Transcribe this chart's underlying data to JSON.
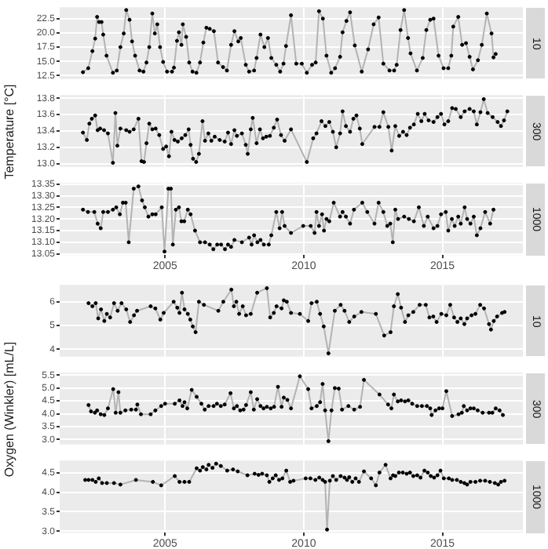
{
  "chart_data": [
    {
      "type": "line",
      "annotations": [
        "10"
      ],
      "xlim": [
        2001.2,
        2017.9
      ],
      "xticks": [
        2005,
        2010,
        2015
      ],
      "ylim": [
        11.9,
        24.5
      ],
      "yticks": [
        {
          "value": 12.5,
          "label": "12.5"
        },
        {
          "value": 15,
          "label": "15.0"
        },
        {
          "value": 17.5,
          "label": "17.5"
        },
        {
          "value": 20,
          "label": "20.0"
        },
        {
          "value": 22.5,
          "label": "22.5"
        }
      ],
      "grid": true,
      "marker": "circle",
      "tick_labels": "y",
      "series": [
        {
          "color": "#b3b3b3",
          "x": [
            2002.04,
            2002.23,
            2002.38,
            2002.48,
            2002.55,
            2002.62,
            2002.71,
            2002.77,
            2002.89,
            2003.12,
            2003.26,
            2003.39,
            2003.51,
            2003.6,
            2003.72,
            2003.81,
            2003.92,
            2004.08,
            2004.22,
            2004.33,
            2004.43,
            2004.54,
            2004.63,
            2004.72,
            2004.82,
            2004.93,
            2005.07,
            2005.25,
            2005.32,
            2005.43,
            2005.5,
            2005.59,
            2005.64,
            2005.76,
            2005.87,
            2005.99,
            2006.13,
            2006.26,
            2006.38,
            2006.49,
            2006.61,
            2006.76,
            2006.91,
            2007.09,
            2007.23,
            2007.38,
            2007.5,
            2007.64,
            2007.73,
            2007.91,
            2008.03,
            2008.21,
            2008.3,
            2008.44,
            2008.58,
            2008.71,
            2008.83,
            2009.01,
            2009.15,
            2009.27,
            2009.36,
            2009.54,
            2009.73,
            2009.93,
            2010.11,
            2010.3,
            2010.43,
            2010.55,
            2010.69,
            2010.82,
            2010.99,
            2011.13,
            2011.31,
            2011.4,
            2011.54,
            2011.67,
            2011.84,
            2012.09,
            2012.32,
            2012.52,
            2012.7,
            2012.87,
            2013.09,
            2013.26,
            2013.35,
            2013.49,
            2013.62,
            2013.76,
            2013.85,
            2014.08,
            2014.29,
            2014.42,
            2014.56,
            2014.68,
            2014.86,
            2015.04,
            2015.21,
            2015.32,
            2015.39,
            2015.57,
            2015.71,
            2015.85,
            2015.98,
            2016.1,
            2016.28,
            2016.42,
            2016.6,
            2016.77,
            2016.84,
            2016.92
          ],
          "values": [
            13.1,
            13.8,
            16.8,
            19.0,
            22.8,
            21.9,
            21.9,
            19.7,
            16.0,
            13.0,
            13.4,
            17.5,
            19.9,
            24.0,
            22.3,
            18.5,
            16.0,
            13.4,
            13.2,
            14.8,
            17.5,
            23.4,
            19.9,
            21.5,
            17.5,
            14.9,
            13.2,
            13.2,
            13.9,
            18.6,
            20.1,
            17.9,
            21.5,
            19.3,
            14.8,
            13.2,
            13.0,
            14.8,
            18.3,
            20.9,
            20.7,
            20.3,
            14.8,
            14.0,
            13.4,
            17.9,
            20.3,
            18.5,
            19.1,
            14.4,
            13.2,
            13.4,
            15.6,
            19.7,
            17.5,
            19.1,
            15.6,
            14.4,
            13.2,
            14.6,
            17.7,
            23.1,
            14.6,
            14.6,
            13.0,
            14.4,
            14.8,
            23.8,
            22.5,
            16.0,
            13.0,
            13.8,
            15.8,
            20.1,
            22.1,
            23.6,
            17.8,
            13.2,
            17.1,
            21.5,
            22.7,
            14.6,
            13.4,
            13.4,
            14.4,
            20.5,
            24.0,
            19.1,
            16.4,
            13.4,
            15.6,
            20.5,
            22.3,
            22.5,
            16.0,
            13.8,
            13.8,
            16.0,
            21.1,
            22.8,
            17.9,
            18.2,
            15.8,
            13.6,
            15.2,
            17.9,
            23.4,
            19.9,
            15.7,
            16.3
          ]
        }
      ]
    },
    {
      "type": "line",
      "annotations": [
        "300"
      ],
      "ylabel": "Temperature [°C]",
      "xlim": [
        2001.2,
        2017.9
      ],
      "xticks": [
        2005,
        2010,
        2015
      ],
      "ylim": [
        12.96,
        13.84
      ],
      "yticks": [
        {
          "value": 13,
          "label": "13.0"
        },
        {
          "value": 13.2,
          "label": "13.2"
        },
        {
          "value": 13.4,
          "label": "13.4"
        },
        {
          "value": 13.6,
          "label": "13.6"
        },
        {
          "value": 13.8,
          "label": "13.8"
        }
      ],
      "grid": true,
      "marker": "circle",
      "tick_labels": "y",
      "series": [
        {
          "color": "#b3b3b3",
          "x": [
            2002.04,
            2002.18,
            2002.27,
            2002.36,
            2002.48,
            2002.57,
            2002.66,
            2002.8,
            2002.94,
            2003.12,
            2003.21,
            2003.28,
            2003.39,
            2003.6,
            2003.72,
            2003.87,
            2004.04,
            2004.15,
            2004.24,
            2004.33,
            2004.43,
            2004.54,
            2004.66,
            2004.79,
            2004.93,
            2005.04,
            2005.14,
            2005.23,
            2005.34,
            2005.46,
            2005.6,
            2005.73,
            2005.85,
            2005.92,
            2006.01,
            2006.12,
            2006.22,
            2006.35,
            2006.44,
            2006.56,
            2006.67,
            2006.79,
            2006.97,
            2007.15,
            2007.27,
            2007.38,
            2007.5,
            2007.59,
            2007.77,
            2007.91,
            2007.98,
            2008.09,
            2008.16,
            2008.3,
            2008.42,
            2008.53,
            2008.65,
            2008.78,
            2008.92,
            2009.04,
            2009.18,
            2009.31,
            2009.54,
            2010.11,
            2010.34,
            2010.46,
            2010.64,
            2010.78,
            2010.92,
            2011.05,
            2011.17,
            2011.31,
            2011.4,
            2011.52,
            2011.67,
            2011.79,
            2011.9,
            2012.02,
            2012.11,
            2012.55,
            2012.73,
            2012.87,
            2013.05,
            2013.17,
            2013.3,
            2013.44,
            2013.58,
            2013.71,
            2013.83,
            2013.97,
            2014.11,
            2014.24,
            2014.36,
            2014.5,
            2014.68,
            2014.82,
            2014.95,
            2015.07,
            2015.21,
            2015.35,
            2015.48,
            2015.66,
            2015.8,
            2015.98,
            2016.13,
            2016.24,
            2016.37,
            2016.49,
            2016.63,
            2016.81,
            2016.99,
            2017.11,
            2017.22,
            2017.34
          ],
          "values": [
            13.38,
            13.29,
            13.49,
            13.55,
            13.59,
            13.41,
            13.43,
            13.41,
            13.37,
            13.01,
            13.62,
            13.22,
            13.43,
            13.41,
            13.39,
            13.42,
            13.55,
            13.03,
            13.02,
            13.25,
            13.49,
            13.42,
            13.43,
            13.35,
            13.18,
            13.21,
            13.09,
            13.39,
            13.29,
            13.27,
            13.31,
            13.35,
            13.42,
            13.23,
            13.06,
            13.02,
            13.12,
            13.52,
            13.28,
            13.37,
            13.28,
            13.33,
            13.29,
            13.27,
            13.38,
            13.24,
            13.41,
            13.34,
            13.37,
            13.23,
            13.12,
            13.42,
            13.56,
            13.25,
            13.42,
            13.31,
            13.33,
            13.34,
            13.44,
            13.54,
            13.35,
            13.28,
            13.42,
            13.02,
            13.31,
            13.37,
            13.52,
            13.46,
            13.51,
            13.39,
            13.2,
            13.37,
            13.64,
            13.46,
            13.39,
            13.55,
            13.59,
            13.43,
            13.24,
            13.45,
            13.45,
            13.63,
            13.45,
            13.16,
            13.46,
            13.34,
            13.39,
            13.35,
            13.44,
            13.48,
            13.61,
            13.52,
            13.61,
            13.53,
            13.51,
            13.57,
            13.61,
            13.48,
            13.52,
            13.68,
            13.67,
            13.57,
            13.64,
            13.67,
            13.64,
            13.48,
            13.63,
            13.79,
            13.62,
            13.57,
            13.51,
            13.46,
            13.53,
            13.64
          ]
        }
      ]
    },
    {
      "type": "line",
      "annotations": [
        "1000"
      ],
      "xlim": [
        2001.2,
        2017.9
      ],
      "xticks": [
        2005,
        2010,
        2015
      ],
      "ylim": [
        13.045,
        13.355
      ],
      "yticks": [
        {
          "value": 13.05,
          "label": "13.05"
        },
        {
          "value": 13.1,
          "label": "13.10"
        },
        {
          "value": 13.15,
          "label": "13.15"
        },
        {
          "value": 13.2,
          "label": "13.20"
        },
        {
          "value": 13.25,
          "label": "13.25"
        },
        {
          "value": 13.3,
          "label": "13.30"
        },
        {
          "value": 13.35,
          "label": "13.35"
        }
      ],
      "grid": true,
      "marker": "circle",
      "series": [
        {
          "color": "#b3b3b3",
          "x": [
            2002.04,
            2002.22,
            2002.45,
            2002.57,
            2002.68,
            2002.77,
            2002.94,
            2003.12,
            2003.24,
            2003.37,
            2003.48,
            2003.58,
            2003.69,
            2003.87,
            2004.04,
            2004.17,
            2004.27,
            2004.4,
            2004.54,
            2004.66,
            2004.88,
            2004.98,
            2005.12,
            2005.21,
            2005.28,
            2005.39,
            2005.5,
            2005.59,
            2005.69,
            2005.82,
            2005.92,
            2006.08,
            2006.26,
            2006.44,
            2006.61,
            2006.74,
            2006.88,
            2007.02,
            2007.16,
            2007.27,
            2007.38,
            2007.5,
            2007.77,
            2008.03,
            2008.12,
            2008.21,
            2008.33,
            2008.44,
            2008.56,
            2008.74,
            2008.83,
            2009.01,
            2009.13,
            2009.22,
            2009.31,
            2009.54,
            2009.98,
            2010.25,
            2010.39,
            2010.46,
            2010.55,
            2010.66,
            2010.73,
            2010.82,
            2010.92,
            2011.08,
            2011.31,
            2011.4,
            2011.52,
            2011.67,
            2011.81,
            2012.11,
            2012.29,
            2012.55,
            2012.7,
            2012.87,
            2013.01,
            2013.12,
            2013.21,
            2013.3,
            2013.4,
            2013.62,
            2013.79,
            2013.97,
            2014.15,
            2014.33,
            2014.47,
            2014.68,
            2014.82,
            2014.95,
            2015.12,
            2015.21,
            2015.34,
            2015.44,
            2015.57,
            2015.66,
            2015.8,
            2015.89,
            2016.01,
            2016.13,
            2016.24,
            2016.37,
            2016.54,
            2016.72,
            2016.84
          ],
          "values": [
            13.24,
            13.23,
            13.23,
            13.18,
            13.16,
            13.23,
            13.23,
            13.24,
            13.25,
            13.22,
            13.27,
            13.27,
            13.1,
            13.33,
            13.34,
            13.28,
            13.25,
            13.21,
            13.22,
            13.22,
            13.25,
            13.06,
            13.33,
            13.33,
            13.09,
            13.24,
            13.25,
            13.19,
            13.19,
            13.24,
            13.22,
            13.15,
            13.1,
            13.1,
            13.09,
            13.07,
            13.09,
            13.09,
            13.07,
            13.09,
            13.08,
            13.11,
            13.1,
            13.12,
            13.09,
            13.13,
            13.1,
            13.11,
            13.09,
            13.09,
            13.13,
            13.23,
            13.16,
            13.23,
            13.17,
            13.14,
            13.17,
            13.17,
            13.14,
            13.23,
            13.17,
            13.22,
            13.15,
            13.2,
            13.19,
            13.27,
            13.21,
            13.23,
            13.21,
            13.18,
            13.24,
            13.27,
            13.23,
            13.18,
            13.27,
            13.23,
            13.17,
            13.18,
            13.1,
            13.24,
            13.2,
            13.21,
            13.2,
            13.19,
            13.25,
            13.17,
            13.21,
            13.16,
            13.17,
            13.22,
            13.23,
            13.15,
            13.2,
            13.17,
            13.21,
            13.18,
            13.25,
            13.2,
            13.18,
            13.21,
            13.13,
            13.16,
            13.23,
            13.18,
            13.24
          ]
        }
      ]
    },
    {
      "type": "line",
      "annotations": [
        "10"
      ],
      "xlim": [
        2001.2,
        2017.9
      ],
      "xticks": [
        2005,
        2010,
        2015
      ],
      "ylim": [
        3.69,
        6.71
      ],
      "yticks": [
        4,
        5,
        6
      ],
      "grid": true,
      "marker": "circle",
      "tick_labels": "y",
      "series": [
        {
          "color": "#b3b3b3",
          "x": [
            2002.24,
            2002.38,
            2002.5,
            2002.59,
            2002.69,
            2002.81,
            2002.9,
            2003.02,
            2003.16,
            2003.29,
            2003.43,
            2003.6,
            2003.74,
            2003.88,
            2003.99,
            2004.48,
            2004.65,
            2004.83,
            2004.95,
            2005.31,
            2005.44,
            2005.52,
            2005.61,
            2005.7,
            2005.82,
            2005.91,
            2006.0,
            2006.1,
            2006.22,
            2006.4,
            2006.92,
            2007.1,
            2007.39,
            2007.48,
            2007.57,
            2007.67,
            2007.8,
            2007.92,
            2008.09,
            2008.32,
            2008.67,
            2008.79,
            2008.92,
            2009.02,
            2009.2,
            2009.28,
            2009.39,
            2009.54,
            2009.86,
            2010.16,
            2010.28,
            2010.47,
            2010.59,
            2010.72,
            2010.89,
            2011.12,
            2011.33,
            2011.47,
            2011.64,
            2011.82,
            2012.08,
            2012.6,
            2012.9,
            2013.13,
            2013.25,
            2013.39,
            2013.51,
            2013.65,
            2013.77,
            2013.95,
            2014.18,
            2014.4,
            2014.53,
            2014.67,
            2014.79,
            2014.96,
            2015.14,
            2015.28,
            2015.42,
            2015.54,
            2015.66,
            2015.79,
            2015.89,
            2016.05,
            2016.19,
            2016.36,
            2016.5,
            2016.68,
            2016.75,
            2016.85,
            2016.97,
            2017.15,
            2017.24
          ],
          "values": [
            5.94,
            5.81,
            5.94,
            5.3,
            5.68,
            5.19,
            5.49,
            5.34,
            5.94,
            5.62,
            5.94,
            5.68,
            5.15,
            5.43,
            5.62,
            5.81,
            5.72,
            5.25,
            5.53,
            6.0,
            5.75,
            5.53,
            6.38,
            5.68,
            5.49,
            5.25,
            4.96,
            4.72,
            6.0,
            5.87,
            5.62,
            6.0,
            6.51,
            5.81,
            6.0,
            5.49,
            5.81,
            5.43,
            5.49,
            6.38,
            6.57,
            5.34,
            5.53,
            5.81,
            5.72,
            6.06,
            6.0,
            5.53,
            5.49,
            5.19,
            5.94,
            6.0,
            5.49,
            4.96,
            3.83,
            5.62,
            5.87,
            5.62,
            5.15,
            5.38,
            5.57,
            5.49,
            4.58,
            4.72,
            5.81,
            6.32,
            5.75,
            5.15,
            5.43,
            5.57,
            5.87,
            5.87,
            5.34,
            5.38,
            5.15,
            5.49,
            5.43,
            5.87,
            5.34,
            5.15,
            5.3,
            5.06,
            5.3,
            5.43,
            5.49,
            5.87,
            5.72,
            5.06,
            4.83,
            5.19,
            5.38,
            5.53,
            5.57
          ]
        }
      ]
    },
    {
      "type": "line",
      "annotations": [
        "300"
      ],
      "ylabel": "Oxygen (Winkler) [mL/L]",
      "xlim": [
        2001.2,
        2017.9
      ],
      "xticks": [
        2005,
        2010,
        2015
      ],
      "ylim": [
        2.8,
        5.6
      ],
      "yticks": [
        {
          "value": 3,
          "label": "3.0"
        },
        {
          "value": 3.5,
          "label": "3.5"
        },
        {
          "value": 4,
          "label": "4.0"
        },
        {
          "value": 4.5,
          "label": "4.5"
        },
        {
          "value": 5,
          "label": "5.0"
        },
        {
          "value": 5.5,
          "label": "5.5"
        }
      ],
      "grid": true,
      "marker": "circle",
      "tick_labels": "y",
      "series": [
        {
          "color": "#b3b3b3",
          "x": [
            2002.24,
            2002.33,
            2002.47,
            2002.55,
            2002.68,
            2002.81,
            2002.94,
            2003.13,
            2003.22,
            2003.32,
            2003.39,
            2003.57,
            2003.78,
            2003.95,
            2004.0,
            2004.13,
            2004.48,
            2004.65,
            2004.86,
            2005.0,
            2005.35,
            2005.52,
            2005.63,
            2005.7,
            2005.8,
            2005.96,
            2006.14,
            2006.31,
            2006.43,
            2006.57,
            2006.75,
            2006.87,
            2007.01,
            2007.15,
            2007.36,
            2007.48,
            2007.59,
            2007.71,
            2007.83,
            2007.92,
            2008.09,
            2008.2,
            2008.32,
            2008.44,
            2008.55,
            2008.67,
            2008.81,
            2008.93,
            2009.07,
            2009.2,
            2009.28,
            2009.41,
            2009.54,
            2009.86,
            2010.16,
            2010.28,
            2010.47,
            2010.59,
            2010.68,
            2010.77,
            2010.89,
            2011.0,
            2011.12,
            2011.26,
            2011.38,
            2011.61,
            2011.82,
            2012.03,
            2012.17,
            2012.73,
            2013.04,
            2013.16,
            2013.25,
            2013.39,
            2013.51,
            2013.65,
            2013.77,
            2013.91,
            2014.09,
            2014.26,
            2014.44,
            2014.56,
            2014.61,
            2014.75,
            2014.88,
            2015.0,
            2015.14,
            2015.35,
            2015.58,
            2015.7,
            2015.77,
            2015.89,
            2016.01,
            2016.13,
            2016.27,
            2016.45,
            2016.68,
            2016.8,
            2016.92,
            2017.06,
            2017.18
          ],
          "values": [
            4.34,
            4.09,
            4.04,
            4.13,
            3.98,
            3.95,
            4.21,
            4.96,
            4.04,
            4.84,
            4.04,
            4.13,
            4.16,
            4.16,
            4.36,
            3.98,
            3.98,
            4.13,
            4.3,
            4.39,
            4.39,
            4.52,
            4.3,
            4.45,
            4.21,
            4.93,
            4.66,
            4.39,
            4.16,
            4.3,
            4.3,
            4.39,
            4.3,
            4.36,
            4.8,
            4.21,
            4.3,
            4.13,
            4.16,
            4.34,
            4.84,
            4.16,
            4.57,
            4.3,
            4.21,
            4.27,
            4.21,
            4.27,
            5.05,
            4.27,
            4.63,
            4.54,
            4.21,
            5.46,
            4.96,
            4.21,
            4.3,
            4.45,
            5.16,
            4.13,
            2.93,
            4.13,
            5.0,
            4.98,
            4.16,
            4.3,
            4.16,
            4.27,
            5.32,
            4.75,
            4.36,
            4.21,
            4.75,
            4.48,
            4.52,
            4.48,
            4.52,
            4.39,
            4.3,
            4.3,
            4.3,
            4.21,
            3.95,
            4.13,
            4.21,
            4.21,
            4.88,
            3.91,
            3.98,
            4.04,
            4.3,
            4.13,
            4.21,
            4.21,
            4.13,
            4.04,
            4.04,
            4.04,
            4.21,
            4.13,
            3.95
          ]
        }
      ]
    },
    {
      "type": "line",
      "annotations": [
        "1000"
      ],
      "xlim": [
        2001.2,
        2017.9
      ],
      "xticks": [
        2005,
        2010,
        2015
      ],
      "ylim": [
        2.96,
        4.82
      ],
      "yticks": [
        {
          "value": 3,
          "label": "3.0"
        },
        {
          "value": 3.5,
          "label": "3.5"
        },
        {
          "value": 4,
          "label": "4.0"
        },
        {
          "value": 4.5,
          "label": "4.5"
        }
      ],
      "grid": true,
      "marker": "circle",
      "series": [
        {
          "color": "#b3b3b3",
          "x": [
            2002.12,
            2002.24,
            2002.38,
            2002.5,
            2002.61,
            2002.73,
            2002.9,
            2003.16,
            2003.39,
            2003.95,
            2004.56,
            2004.86,
            2005.35,
            2005.52,
            2005.7,
            2005.87,
            2006.14,
            2006.26,
            2006.36,
            2006.49,
            2006.57,
            2006.71,
            2006.84,
            2007.01,
            2007.24,
            2007.45,
            2007.62,
            2007.97,
            2008.23,
            2008.37,
            2008.5,
            2008.67,
            2008.76,
            2008.88,
            2008.99,
            2009.11,
            2009.23,
            2009.37,
            2009.51,
            2009.63,
            2010.07,
            2010.24,
            2010.42,
            2010.56,
            2010.68,
            2010.77,
            2010.84,
            2010.94,
            2011.05,
            2011.17,
            2011.33,
            2011.47,
            2011.56,
            2011.64,
            2011.75,
            2011.87,
            2011.99,
            2012.17,
            2012.43,
            2012.6,
            2012.73,
            2012.95,
            2013.13,
            2013.22,
            2013.3,
            2013.43,
            2013.57,
            2013.71,
            2013.83,
            2013.95,
            2014.09,
            2014.21,
            2014.35,
            2014.47,
            2014.58,
            2014.7,
            2014.82,
            2014.93,
            2015.05,
            2015.23,
            2015.35,
            2015.52,
            2015.66,
            2015.79,
            2015.89,
            2016.01,
            2016.19,
            2016.36,
            2016.54,
            2016.71,
            2016.89,
            2017.01,
            2017.11,
            2017.24
          ],
          "values": [
            4.32,
            4.32,
            4.32,
            4.27,
            4.36,
            4.24,
            4.24,
            4.24,
            4.2,
            4.32,
            4.27,
            4.18,
            4.42,
            4.27,
            4.27,
            4.27,
            4.62,
            4.56,
            4.65,
            4.59,
            4.71,
            4.63,
            4.74,
            4.68,
            4.56,
            4.59,
            4.54,
            4.44,
            4.48,
            4.45,
            4.48,
            4.44,
            4.27,
            4.36,
            4.44,
            4.32,
            4.36,
            4.56,
            4.27,
            4.3,
            4.36,
            4.36,
            4.32,
            4.38,
            4.32,
            4.27,
            3.04,
            4.3,
            4.42,
            4.32,
            4.42,
            4.38,
            4.32,
            4.39,
            4.27,
            4.36,
            4.27,
            4.54,
            4.36,
            4.18,
            4.51,
            4.71,
            4.36,
            4.44,
            4.42,
            4.51,
            4.51,
            4.48,
            4.51,
            4.42,
            4.44,
            4.38,
            4.56,
            4.51,
            4.42,
            4.38,
            4.44,
            4.56,
            4.36,
            4.36,
            4.32,
            4.32,
            4.27,
            4.24,
            4.2,
            4.27,
            4.27,
            4.3,
            4.3,
            4.27,
            4.24,
            4.2,
            4.27,
            4.3
          ]
        }
      ]
    }
  ]
}
